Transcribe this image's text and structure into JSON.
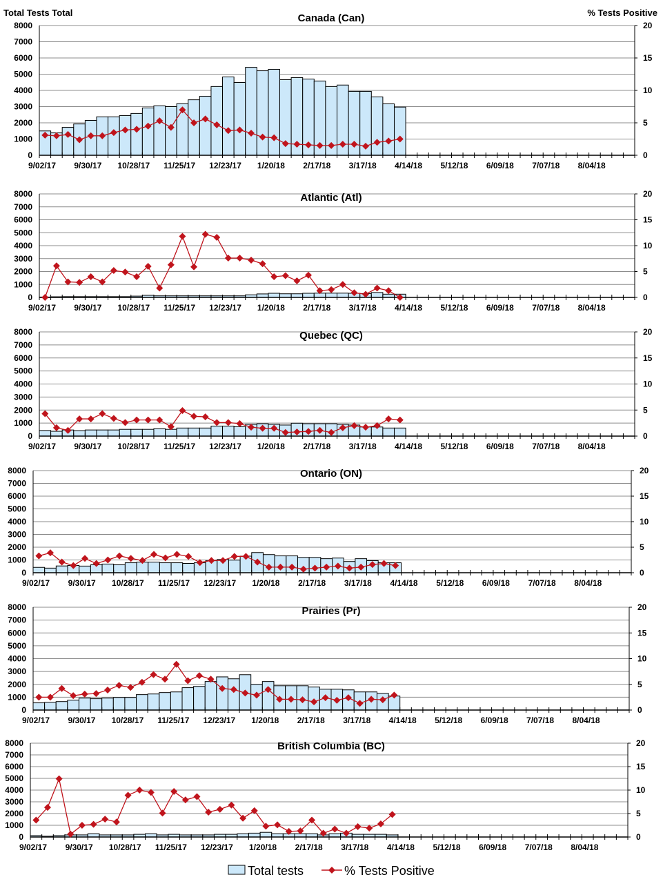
{
  "header": {
    "left_axis_title": "Total Tests Total",
    "right_axis_title": "% Tests Positive"
  },
  "legend": {
    "bars_label": "Total tests",
    "line_label": "% Tests Positive"
  },
  "colors": {
    "bar_fill": "#cce8fa",
    "bar_stroke": "#000000",
    "line": "#c0141c",
    "grid": "#8c8c8c"
  },
  "chart_data": {
    "type": "bar+line",
    "x_tick_labels": [
      "9/02/17",
      "9/30/17",
      "10/28/17",
      "11/25/17",
      "12/23/17",
      "1/20/18",
      "2/17/18",
      "3/17/18",
      "4/14/18",
      "5/12/18",
      "6/09/18",
      "7/07/18",
      "8/04/18"
    ],
    "x_weeks_total": 52,
    "x_start": "9/02/17",
    "x_interval": "weekly",
    "y_left": {
      "label": "Total Tests Total",
      "range": [
        0,
        8000
      ],
      "ticks": [
        0,
        1000,
        2000,
        3000,
        4000,
        5000,
        6000,
        7000,
        8000
      ]
    },
    "y_right": {
      "label": "% Tests Positive",
      "range": [
        0,
        20
      ],
      "ticks": [
        0,
        5,
        10,
        15,
        20
      ]
    },
    "grid": true,
    "legend_position": "bottom",
    "panels": [
      {
        "title": "Canada (Can)",
        "total_tests": [
          1500,
          1380,
          1720,
          1930,
          2150,
          2370,
          2370,
          2450,
          2580,
          2920,
          3050,
          3000,
          3180,
          3420,
          3640,
          4240,
          4830,
          4490,
          5420,
          5210,
          5300,
          4660,
          4790,
          4700,
          4580,
          4240,
          4330,
          3940,
          3940,
          3600,
          3170,
          2970
        ],
        "pct_positive": [
          3.1,
          3.0,
          3.2,
          2.4,
          3.0,
          3.0,
          3.5,
          3.9,
          4.0,
          4.5,
          5.3,
          4.3,
          7.0,
          5.0,
          5.6,
          4.7,
          3.8,
          3.9,
          3.4,
          2.8,
          2.7,
          1.8,
          1.7,
          1.6,
          1.5,
          1.5,
          1.7,
          1.7,
          1.4,
          2.0,
          2.2,
          2.5
        ]
      },
      {
        "title": "Atlantic (Atl)",
        "total_tests": [
          30,
          50,
          60,
          60,
          60,
          60,
          60,
          60,
          100,
          160,
          120,
          120,
          120,
          120,
          120,
          120,
          120,
          120,
          200,
          270,
          320,
          280,
          280,
          320,
          330,
          330,
          330,
          320,
          300,
          380,
          250,
          250
        ],
        "pct_positive": [
          0,
          6.1,
          3.0,
          2.9,
          4.0,
          3.0,
          5.2,
          4.9,
          4.0,
          6.0,
          1.8,
          6.3,
          11.8,
          5.9,
          12.2,
          11.6,
          7.6,
          7.6,
          7.2,
          6.5,
          4.0,
          4.2,
          3.2,
          4.3,
          1.3,
          1.5,
          2.5,
          0.9,
          0.6,
          1.8,
          1.3,
          0
        ]
      },
      {
        "title": "Quebec (QC)",
        "total_tests": [
          430,
          370,
          470,
          420,
          470,
          470,
          470,
          520,
          520,
          520,
          570,
          520,
          620,
          620,
          620,
          770,
          770,
          720,
          900,
          950,
          900,
          850,
          990,
          950,
          950,
          950,
          900,
          850,
          700,
          700,
          620,
          620
        ],
        "pct_positive": [
          4.3,
          1.6,
          1.1,
          3.3,
          3.3,
          4.3,
          3.4,
          2.6,
          3.1,
          3.1,
          3.1,
          1.8,
          4.9,
          3.8,
          3.7,
          2.6,
          2.6,
          2.4,
          1.7,
          1.5,
          1.5,
          0.7,
          0.8,
          0.9,
          1.1,
          0.7,
          1.6,
          2.0,
          1.7,
          2.0,
          3.3,
          3.1
        ]
      },
      {
        "title": "Ontario (ON)",
        "total_tests": [
          420,
          360,
          530,
          570,
          520,
          620,
          680,
          620,
          780,
          830,
          830,
          780,
          780,
          730,
          780,
          940,
          1040,
          990,
          1300,
          1580,
          1420,
          1320,
          1320,
          1200,
          1200,
          1100,
          1150,
          880,
          1100,
          950,
          780,
          780
        ],
        "pct_positive": [
          3.3,
          3.9,
          2.1,
          1.4,
          2.8,
          1.8,
          2.5,
          3.3,
          2.8,
          2.4,
          3.6,
          2.9,
          3.6,
          3.2,
          2.0,
          2.4,
          2.4,
          3.2,
          3.2,
          2.1,
          1.1,
          1.1,
          1.1,
          0.7,
          0.9,
          1.1,
          1.3,
          0.9,
          1.1,
          1.6,
          1.8,
          1.4
        ]
      },
      {
        "title": "Prairies (Pr)",
        "total_tests": [
          560,
          600,
          660,
          770,
          930,
          880,
          930,
          980,
          980,
          1200,
          1250,
          1360,
          1410,
          1740,
          1840,
          2220,
          2580,
          2430,
          2750,
          2000,
          2220,
          1890,
          1890,
          1890,
          1790,
          1620,
          1620,
          1570,
          1410,
          1410,
          1300,
          1090
        ],
        "pct_positive": [
          2.5,
          2.5,
          4.2,
          2.8,
          3.1,
          3.2,
          3.9,
          4.8,
          4.4,
          5.4,
          6.9,
          6.0,
          8.9,
          5.7,
          6.7,
          6.0,
          4.2,
          4.0,
          3.3,
          2.9,
          4.0,
          2.1,
          2.1,
          2.0,
          1.6,
          2.4,
          1.9,
          2.4,
          1.3,
          2.1,
          2.0,
          2.9
        ]
      },
      {
        "title": "British Columbia (BC)",
        "total_tests": [
          120,
          70,
          120,
          180,
          180,
          280,
          180,
          180,
          180,
          230,
          280,
          180,
          230,
          180,
          180,
          180,
          230,
          230,
          280,
          330,
          400,
          280,
          280,
          280,
          280,
          180,
          280,
          330,
          230,
          230,
          230,
          180
        ],
        "pct_positive": [
          3.6,
          6.3,
          12.4,
          0.6,
          2.5,
          2.7,
          3.8,
          3.2,
          8.9,
          10.0,
          9.5,
          5.1,
          9.7,
          7.9,
          8.6,
          5.3,
          5.9,
          6.8,
          4.0,
          5.6,
          2.3,
          2.6,
          1.2,
          1.3,
          3.6,
          0.8,
          1.7,
          0.8,
          2.2,
          1.9,
          2.8,
          4.8
        ]
      }
    ]
  }
}
